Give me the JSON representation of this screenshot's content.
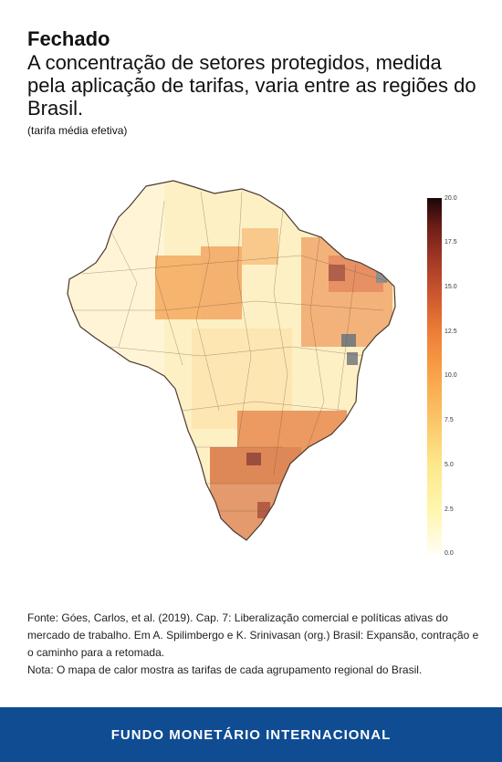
{
  "header": {
    "title": "Fechado",
    "subtitle": "A concentração de setores protegidos, medida pela aplicação de tarifas, varia entre as regiões do Brasil.",
    "unit_note": "(tarifa média efetiva)"
  },
  "legend": {
    "ticks": [
      "20.0",
      "17.5",
      "15.0",
      "12.5",
      "10.0",
      "7.5",
      "5.0",
      "2.5",
      "0.0"
    ],
    "min": 0.0,
    "max": 20.0,
    "colors": [
      "#fffef2",
      "#fde88a",
      "#f9a449",
      "#cf5a2e",
      "#6e1d19",
      "#1a0606"
    ]
  },
  "map": {
    "region": "Brasil",
    "boundary_color": "#555555",
    "no_data_color": "#808080"
  },
  "footer": {
    "source": "Fonte: Góes, Carlos, et al. (2019). Cap. 7: Liberalização comercial e políticas ativas do mercado de trabalho. Em A. Spilimbergo e K. Srinivasan (org.) Brasil: Expansão, contração e o caminho para a retomada.",
    "note": "Nota: O mapa de calor mostra as tarifas de cada agrupamento regional do Brasil."
  },
  "banner": {
    "label": "FUNDO MONETÁRIO INTERNACIONAL",
    "color": "#0f4c92"
  }
}
